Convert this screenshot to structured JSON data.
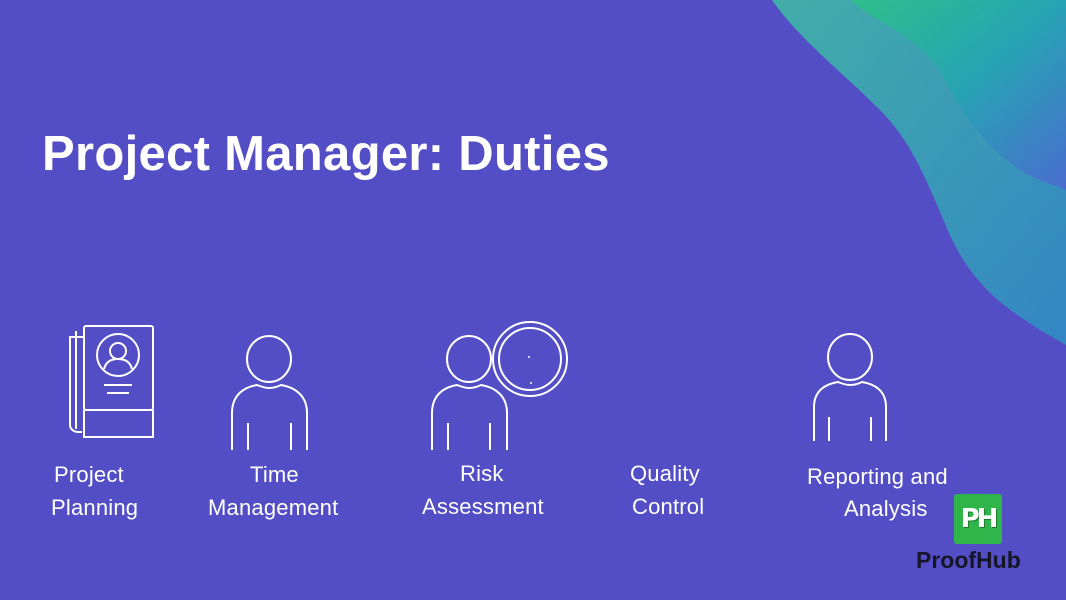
{
  "slide": {
    "title": "Project Manager: Duties",
    "background_color": "#544ec6",
    "wave_colors": [
      "#2fbf8a",
      "#27a3b4",
      "#4a6ccf"
    ]
  },
  "duties": [
    {
      "line1": "Project",
      "line2": "Planning",
      "icon": "profile-document-icon"
    },
    {
      "line1": "Time",
      "line2": "Management",
      "icon": "person-icon"
    },
    {
      "line1": "Risk",
      "line2": "Assessment",
      "icon": "person-with-clock-icon"
    },
    {
      "line1": "Quality",
      "line2": "Control",
      "icon": ""
    },
    {
      "line1": "Reporting and",
      "line2": "Analysis",
      "icon": "person-icon"
    }
  ],
  "brand": {
    "badge": "PH",
    "name": "ProofHub",
    "color": "#2fb54a"
  }
}
